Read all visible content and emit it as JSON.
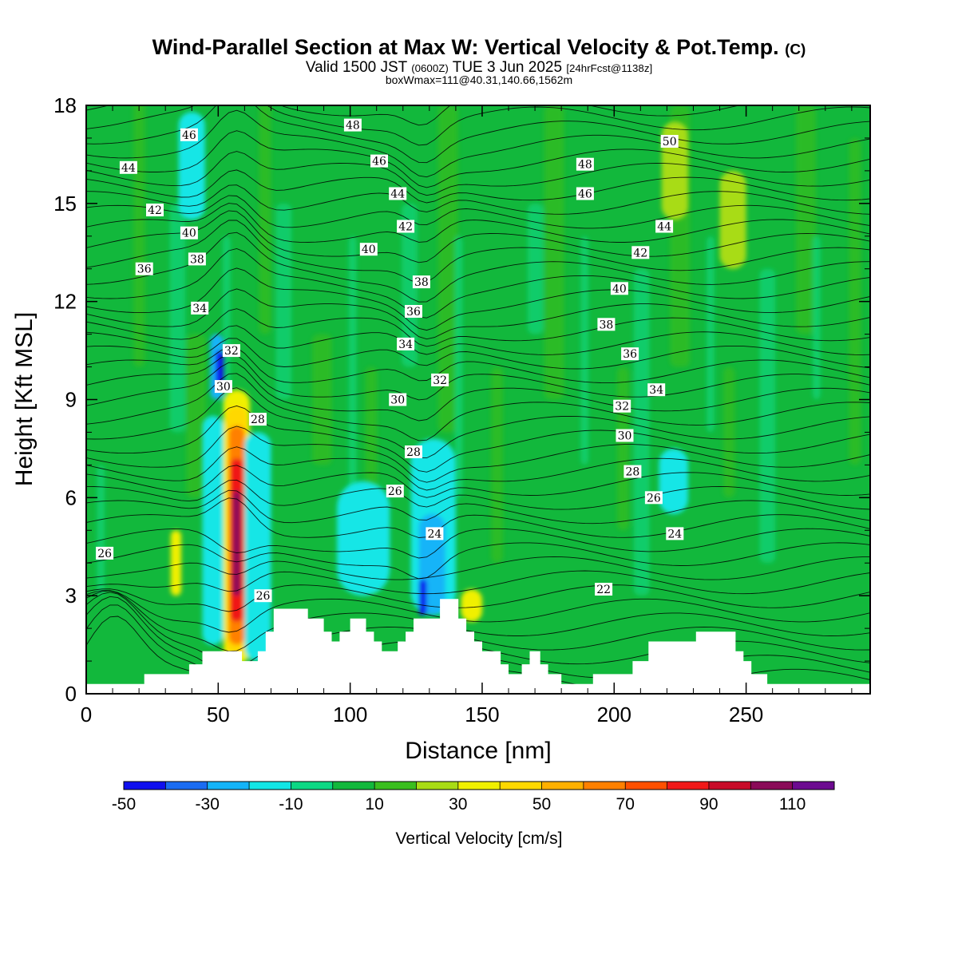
{
  "header": {
    "title_main": "Wind-Parallel Section at Max W: Vertical Velocity & Pot.Temp.",
    "title_mark": "(C)",
    "line2_a": "Valid 1500 JST",
    "line2_b": "(0600Z)",
    "line2_c": "TUE 3 Jun 2025",
    "line2_d": "[24hrFcst@1138z]",
    "line3": "boxWmax=111@40.31,140.66,1562m"
  },
  "chart_data": {
    "type": "heatmap",
    "title": "Wind-Parallel Section at Max W: Vertical Velocity & Pot.Temp.",
    "xlabel": "Distance [nm]",
    "ylabel": "Height [Kft MSL]",
    "xlim": [
      0,
      297
    ],
    "ylim": [
      0,
      18
    ],
    "xticks": [
      0,
      50,
      100,
      150,
      200,
      250
    ],
    "yticks": [
      0,
      3,
      6,
      9,
      12,
      15,
      18
    ],
    "xtick_labels": [
      "0",
      "50",
      "100",
      "150",
      "200",
      "250"
    ],
    "ytick_labels": [
      "0",
      "3",
      "6",
      "9",
      "12",
      "15",
      "18"
    ],
    "colorbar": {
      "title": "Vertical Velocity [cm/s]",
      "bounds": [
        -50,
        -40,
        -30,
        -20,
        -10,
        0,
        10,
        20,
        30,
        40,
        50,
        60,
        70,
        80,
        90,
        100,
        110,
        120
      ],
      "colors": [
        "#1010ee",
        "#1a6cf2",
        "#14b4f8",
        "#12e6e6",
        "#0cd884",
        "#12b83c",
        "#3abe1e",
        "#a8dc14",
        "#f0f000",
        "#ffd800",
        "#ffb000",
        "#ff8000",
        "#ff5000",
        "#f01818",
        "#c80a28",
        "#8a0a58",
        "#6c0a90"
      ],
      "tick_labels": [
        "-50",
        "-30",
        "-10",
        "10",
        "30",
        "50",
        "70",
        "90",
        "110"
      ]
    },
    "background_class": "10 cm/s",
    "updraft_core": {
      "x": 57,
      "y_range": [
        0.9,
        8.8
      ],
      "peak_value": 111
    },
    "w_features": [
      {
        "x0": 52,
        "x1": 62,
        "y0": 0.9,
        "y1": 9.3,
        "value": 30
      },
      {
        "x0": 53,
        "x1": 61,
        "y0": 1.2,
        "y1": 8.8,
        "value": 45
      },
      {
        "x0": 54,
        "x1": 60,
        "y0": 1.5,
        "y1": 8.2,
        "value": 65
      },
      {
        "x0": 54.5,
        "x1": 59.5,
        "y0": 2.2,
        "y1": 7.2,
        "value": 85
      },
      {
        "x0": 55.5,
        "x1": 58.5,
        "y0": 3.0,
        "y1": 6.2,
        "value": 105
      },
      {
        "x0": 44,
        "x1": 52,
        "y0": 1.5,
        "y1": 8.5,
        "value": -12
      },
      {
        "x0": 60,
        "x1": 70,
        "y0": 1.0,
        "y1": 8.0,
        "value": -12
      },
      {
        "x0": 47,
        "x1": 52,
        "y0": 9.0,
        "y1": 11.0,
        "value": -28
      },
      {
        "x0": 49,
        "x1": 52,
        "y0": 9.3,
        "y1": 10.5,
        "value": -42
      },
      {
        "x0": 123,
        "x1": 140,
        "y0": 2.4,
        "y1": 7.8,
        "value": -15
      },
      {
        "x0": 126,
        "x1": 136,
        "y0": 2.4,
        "y1": 5.5,
        "value": -28
      },
      {
        "x0": 126,
        "x1": 129,
        "y0": 2.4,
        "y1": 3.5,
        "value": -42
      },
      {
        "x0": 32,
        "x1": 36,
        "y0": 3.0,
        "y1": 5.0,
        "value": 30
      },
      {
        "x0": 142,
        "x1": 150,
        "y0": 2.2,
        "y1": 3.2,
        "value": 30
      },
      {
        "x0": 35,
        "x1": 45,
        "y0": 14.5,
        "y1": 17.8,
        "value": -12
      },
      {
        "x0": 95,
        "x1": 115,
        "y0": 3.0,
        "y1": 6.5,
        "value": -12
      },
      {
        "x0": 217,
        "x1": 228,
        "y0": 5.5,
        "y1": 7.5,
        "value": -12
      },
      {
        "x0": 240,
        "x1": 250,
        "y0": 13.0,
        "y1": 16.0,
        "value": 25
      },
      {
        "x0": 218,
        "x1": 228,
        "y0": 14.5,
        "y1": 17.5,
        "value": 22
      }
    ],
    "terrain_kft": [
      [
        0,
        0.3
      ],
      [
        22,
        0.3
      ],
      [
        22,
        0.6
      ],
      [
        39,
        0.6
      ],
      [
        39,
        0.9
      ],
      [
        44,
        0.9
      ],
      [
        44,
        1.3
      ],
      [
        59,
        1.3
      ],
      [
        59,
        1.0
      ],
      [
        65,
        1.0
      ],
      [
        65,
        1.3
      ],
      [
        68,
        1.3
      ],
      [
        68,
        1.9
      ],
      [
        71,
        1.9
      ],
      [
        71,
        2.6
      ],
      [
        84,
        2.6
      ],
      [
        84,
        2.3
      ],
      [
        90,
        2.3
      ],
      [
        90,
        1.9
      ],
      [
        93,
        1.9
      ],
      [
        93,
        1.6
      ],
      [
        96,
        1.6
      ],
      [
        96,
        1.9
      ],
      [
        100,
        1.9
      ],
      [
        100,
        2.3
      ],
      [
        106,
        2.3
      ],
      [
        106,
        1.9
      ],
      [
        109,
        1.9
      ],
      [
        109,
        1.6
      ],
      [
        112,
        1.6
      ],
      [
        112,
        1.3
      ],
      [
        118,
        1.3
      ],
      [
        118,
        1.6
      ],
      [
        121,
        1.6
      ],
      [
        121,
        1.9
      ],
      [
        124,
        1.9
      ],
      [
        124,
        2.3
      ],
      [
        134,
        2.3
      ],
      [
        134,
        2.9
      ],
      [
        141,
        2.9
      ],
      [
        141,
        2.3
      ],
      [
        144,
        2.3
      ],
      [
        144,
        1.9
      ],
      [
        147,
        1.9
      ],
      [
        147,
        1.6
      ],
      [
        150,
        1.6
      ],
      [
        150,
        1.3
      ],
      [
        157,
        1.3
      ],
      [
        157,
        0.9
      ],
      [
        160,
        0.9
      ],
      [
        160,
        0.6
      ],
      [
        165,
        0.6
      ],
      [
        165,
        0.9
      ],
      [
        168,
        0.9
      ],
      [
        168,
        1.3
      ],
      [
        172,
        1.3
      ],
      [
        172,
        0.9
      ],
      [
        175,
        0.9
      ],
      [
        175,
        0.6
      ],
      [
        180,
        0.6
      ],
      [
        180,
        0.3
      ],
      [
        192,
        0.3
      ],
      [
        192,
        0.6
      ],
      [
        207,
        0.6
      ],
      [
        207,
        1.0
      ],
      [
        213,
        1.0
      ],
      [
        213,
        1.6
      ],
      [
        231,
        1.6
      ],
      [
        231,
        1.9
      ],
      [
        246,
        1.9
      ],
      [
        246,
        1.3
      ],
      [
        249,
        1.3
      ],
      [
        249,
        1.0
      ],
      [
        252,
        1.0
      ],
      [
        252,
        0.6
      ],
      [
        258,
        0.6
      ],
      [
        258,
        0.3
      ],
      [
        297,
        0.3
      ]
    ],
    "theta_contours": {
      "label_values": [
        22,
        24,
        26,
        28,
        30,
        32,
        34,
        36,
        38,
        40,
        42,
        44,
        46,
        48,
        50
      ],
      "labels": [
        {
          "text": "26",
          "x": 7,
          "y": 4.3
        },
        {
          "text": "26",
          "x": 67,
          "y": 3.0
        },
        {
          "text": "26",
          "x": 117,
          "y": 6.2
        },
        {
          "text": "26",
          "x": 215,
          "y": 6.0
        },
        {
          "text": "24",
          "x": 132,
          "y": 4.9
        },
        {
          "text": "24",
          "x": 223,
          "y": 4.9
        },
        {
          "text": "22",
          "x": 196,
          "y": 3.2
        },
        {
          "text": "28",
          "x": 65,
          "y": 8.4
        },
        {
          "text": "28",
          "x": 124,
          "y": 7.4
        },
        {
          "text": "28",
          "x": 207,
          "y": 6.8
        },
        {
          "text": "30",
          "x": 52,
          "y": 9.4
        },
        {
          "text": "30",
          "x": 118,
          "y": 9.0
        },
        {
          "text": "30",
          "x": 204,
          "y": 7.9
        },
        {
          "text": "32",
          "x": 55,
          "y": 10.5
        },
        {
          "text": "32",
          "x": 134,
          "y": 9.6
        },
        {
          "text": "32",
          "x": 203,
          "y": 8.8
        },
        {
          "text": "34",
          "x": 43,
          "y": 11.8
        },
        {
          "text": "34",
          "x": 121,
          "y": 10.7
        },
        {
          "text": "34",
          "x": 216,
          "y": 9.3
        },
        {
          "text": "36",
          "x": 22,
          "y": 13.0
        },
        {
          "text": "36",
          "x": 124,
          "y": 11.7
        },
        {
          "text": "36",
          "x": 206,
          "y": 10.4
        },
        {
          "text": "38",
          "x": 42,
          "y": 13.3
        },
        {
          "text": "38",
          "x": 127,
          "y": 12.6
        },
        {
          "text": "38",
          "x": 197,
          "y": 11.3
        },
        {
          "text": "40",
          "x": 39,
          "y": 14.1
        },
        {
          "text": "40",
          "x": 107,
          "y": 13.6
        },
        {
          "text": "40",
          "x": 202,
          "y": 12.4
        },
        {
          "text": "42",
          "x": 26,
          "y": 14.8
        },
        {
          "text": "42",
          "x": 121,
          "y": 14.3
        },
        {
          "text": "42",
          "x": 210,
          "y": 13.5
        },
        {
          "text": "44",
          "x": 16,
          "y": 16.1
        },
        {
          "text": "44",
          "x": 118,
          "y": 15.3
        },
        {
          "text": "44",
          "x": 219,
          "y": 14.3
        },
        {
          "text": "46",
          "x": 39,
          "y": 17.1
        },
        {
          "text": "46",
          "x": 111,
          "y": 16.3
        },
        {
          "text": "46",
          "x": 189,
          "y": 15.3
        },
        {
          "text": "48",
          "x": 101,
          "y": 17.4
        },
        {
          "text": "48",
          "x": 189,
          "y": 16.2
        },
        {
          "text": "50",
          "x": 221,
          "y": 16.9
        }
      ]
    }
  }
}
